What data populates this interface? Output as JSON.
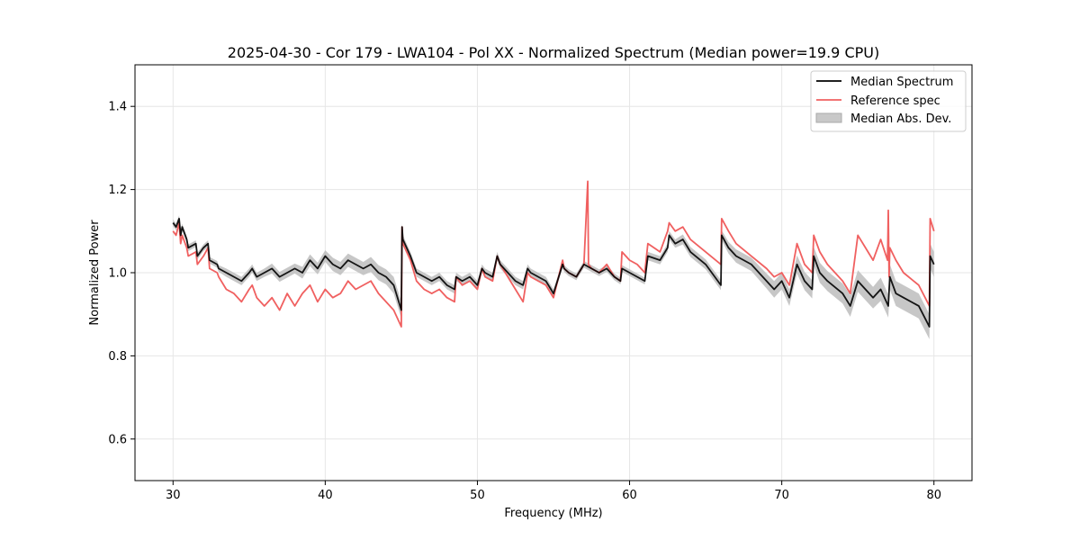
{
  "chart_data": {
    "type": "line",
    "title": "2025-04-30 - Cor 179 - LWA104 - Pol XX - Normalized Spectrum (Median power=19.9 CPU)",
    "xlabel": "Frequency (MHz)",
    "ylabel": "Normalized Power",
    "xlim": [
      27.5,
      82.5
    ],
    "ylim": [
      0.5,
      1.5
    ],
    "xticks": [
      30,
      40,
      50,
      60,
      70,
      80
    ],
    "yticks": [
      0.6,
      0.8,
      1.0,
      1.2,
      1.4
    ],
    "grid": true,
    "legend": {
      "position": "top-right",
      "entries": [
        "Median Spectrum",
        "Reference spec",
        "Median Abs. Dev."
      ]
    },
    "series": [
      {
        "name": "Median Spectrum",
        "color": "#000000",
        "x": [
          30.0,
          30.2,
          30.4,
          30.5,
          30.6,
          30.9,
          31.0,
          31.5,
          31.6,
          32.0,
          32.3,
          32.4,
          32.9,
          33.0,
          33.5,
          34.0,
          34.5,
          35.0,
          35.2,
          35.5,
          36.0,
          36.5,
          37.0,
          37.5,
          38.0,
          38.5,
          39.0,
          39.5,
          40.0,
          40.5,
          41.0,
          41.5,
          42.0,
          42.5,
          43.0,
          43.5,
          44.0,
          44.5,
          45.0,
          45.05,
          45.1,
          45.6,
          46.0,
          46.5,
          47.0,
          47.5,
          48.0,
          48.5,
          48.6,
          49.0,
          49.5,
          50.0,
          50.3,
          50.5,
          51.0,
          51.3,
          51.5,
          52.0,
          52.5,
          53.0,
          53.3,
          53.5,
          54.0,
          54.5,
          55.0,
          55.6,
          55.7,
          56.0,
          56.5,
          57.0,
          57.5,
          58.0,
          58.5,
          59.0,
          59.4,
          59.5,
          60.0,
          60.5,
          61.0,
          61.2,
          62.0,
          62.5,
          62.6,
          63.0,
          63.5,
          64.0,
          65.0,
          66.0,
          66.05,
          66.5,
          67.0,
          68.0,
          69.0,
          69.5,
          70.0,
          70.5,
          71.0,
          71.5,
          72.0,
          72.1,
          72.5,
          73.0,
          74.0,
          74.5,
          75.0,
          75.5,
          76.0,
          76.5,
          77.0,
          77.1,
          77.5,
          78.0,
          79.0,
          79.7,
          79.75,
          80.0
        ],
        "y": [
          1.12,
          1.11,
          1.13,
          1.09,
          1.11,
          1.08,
          1.06,
          1.07,
          1.04,
          1.06,
          1.07,
          1.03,
          1.02,
          1.01,
          1.0,
          0.99,
          0.98,
          1.0,
          1.01,
          0.99,
          1.0,
          1.01,
          0.99,
          1.0,
          1.01,
          1.0,
          1.03,
          1.01,
          1.04,
          1.02,
          1.01,
          1.03,
          1.02,
          1.01,
          1.02,
          1.0,
          0.99,
          0.97,
          0.91,
          1.11,
          1.08,
          1.04,
          1.0,
          0.99,
          0.98,
          0.99,
          0.97,
          0.96,
          0.99,
          0.98,
          0.99,
          0.97,
          1.01,
          1.0,
          0.99,
          1.04,
          1.02,
          1.0,
          0.98,
          0.97,
          1.01,
          1.0,
          0.99,
          0.98,
          0.95,
          1.02,
          1.01,
          1.0,
          0.99,
          1.02,
          1.01,
          1.0,
          1.01,
          0.99,
          0.98,
          1.01,
          1.0,
          0.99,
          0.98,
          1.04,
          1.03,
          1.06,
          1.09,
          1.07,
          1.08,
          1.05,
          1.02,
          0.97,
          1.09,
          1.06,
          1.04,
          1.02,
          0.98,
          0.96,
          0.98,
          0.94,
          1.02,
          0.98,
          0.96,
          1.04,
          1.0,
          0.98,
          0.95,
          0.92,
          0.98,
          0.96,
          0.94,
          0.96,
          0.92,
          0.99,
          0.95,
          0.94,
          0.92,
          0.87,
          1.04,
          1.02
        ]
      },
      {
        "name": "Reference spec",
        "color": "#f06060",
        "x": [
          30.0,
          30.2,
          30.4,
          30.5,
          30.6,
          30.9,
          31.0,
          31.5,
          31.6,
          32.0,
          32.3,
          32.4,
          32.9,
          33.0,
          33.5,
          34.0,
          34.5,
          35.0,
          35.2,
          35.5,
          36.0,
          36.5,
          37.0,
          37.5,
          38.0,
          38.5,
          39.0,
          39.5,
          40.0,
          40.5,
          41.0,
          41.5,
          42.0,
          42.5,
          43.0,
          43.5,
          44.0,
          44.5,
          45.0,
          45.05,
          45.1,
          45.6,
          46.0,
          46.5,
          47.0,
          47.5,
          48.0,
          48.5,
          48.6,
          49.0,
          49.5,
          50.0,
          50.3,
          50.5,
          51.0,
          51.3,
          51.5,
          52.0,
          52.5,
          53.0,
          53.3,
          53.5,
          54.0,
          54.5,
          55.0,
          55.6,
          55.7,
          56.0,
          56.5,
          57.0,
          57.25,
          57.3,
          57.5,
          58.0,
          58.5,
          59.0,
          59.4,
          59.5,
          60.0,
          60.5,
          61.0,
          61.2,
          62.0,
          62.5,
          62.6,
          63.0,
          63.5,
          64.0,
          65.0,
          66.0,
          66.05,
          66.5,
          67.0,
          68.0,
          69.0,
          69.5,
          70.0,
          70.5,
          71.0,
          71.5,
          72.0,
          72.1,
          72.5,
          73.0,
          74.0,
          74.5,
          75.0,
          75.5,
          76.0,
          76.5,
          76.95,
          77.0,
          77.05,
          77.1,
          77.5,
          78.0,
          79.0,
          79.7,
          79.75,
          80.0
        ],
        "y": [
          1.1,
          1.09,
          1.12,
          1.07,
          1.09,
          1.06,
          1.04,
          1.05,
          1.02,
          1.04,
          1.06,
          1.01,
          1.0,
          0.99,
          0.96,
          0.95,
          0.93,
          0.96,
          0.97,
          0.94,
          0.92,
          0.94,
          0.91,
          0.95,
          0.92,
          0.95,
          0.97,
          0.93,
          0.96,
          0.94,
          0.95,
          0.98,
          0.96,
          0.97,
          0.98,
          0.95,
          0.93,
          0.91,
          0.87,
          1.11,
          1.07,
          1.03,
          0.98,
          0.96,
          0.95,
          0.96,
          0.94,
          0.93,
          0.99,
          0.97,
          0.98,
          0.96,
          1.01,
          0.99,
          0.98,
          1.04,
          1.02,
          0.99,
          0.96,
          0.93,
          1.0,
          0.99,
          0.98,
          0.97,
          0.94,
          1.03,
          1.01,
          1.0,
          0.99,
          1.02,
          1.22,
          1.02,
          1.01,
          1.0,
          1.02,
          0.99,
          0.98,
          1.05,
          1.03,
          1.02,
          1.0,
          1.07,
          1.05,
          1.1,
          1.12,
          1.1,
          1.11,
          1.08,
          1.05,
          1.02,
          1.13,
          1.1,
          1.07,
          1.04,
          1.01,
          0.99,
          1.0,
          0.97,
          1.07,
          1.02,
          1.0,
          1.09,
          1.05,
          1.02,
          0.98,
          0.95,
          1.09,
          1.06,
          1.03,
          1.08,
          1.03,
          1.15,
          0.99,
          1.06,
          1.03,
          1.0,
          0.97,
          0.92,
          1.13,
          1.1
        ]
      },
      {
        "name": "Median Abs. Dev.",
        "color": "#aaaaaa",
        "type": "band",
        "center_series": "Median Spectrum",
        "halfwidth": [
          0.008,
          0.008,
          0.008,
          0.008,
          0.008,
          0.008,
          0.008,
          0.008,
          0.008,
          0.008,
          0.008,
          0.008,
          0.008,
          0.008,
          0.01,
          0.01,
          0.01,
          0.01,
          0.01,
          0.01,
          0.01,
          0.012,
          0.012,
          0.012,
          0.012,
          0.014,
          0.014,
          0.014,
          0.014,
          0.016,
          0.016,
          0.016,
          0.016,
          0.016,
          0.018,
          0.018,
          0.018,
          0.02,
          0.02,
          0.01,
          0.01,
          0.01,
          0.01,
          0.01,
          0.01,
          0.01,
          0.01,
          0.01,
          0.01,
          0.01,
          0.01,
          0.01,
          0.01,
          0.01,
          0.01,
          0.01,
          0.01,
          0.01,
          0.01,
          0.01,
          0.01,
          0.01,
          0.01,
          0.01,
          0.01,
          0.008,
          0.008,
          0.008,
          0.008,
          0.008,
          0.008,
          0.008,
          0.008,
          0.008,
          0.008,
          0.008,
          0.008,
          0.008,
          0.008,
          0.01,
          0.01,
          0.01,
          0.01,
          0.01,
          0.012,
          0.012,
          0.012,
          0.012,
          0.012,
          0.014,
          0.016,
          0.016,
          0.018,
          0.02,
          0.02,
          0.02,
          0.022,
          0.022,
          0.022,
          0.022,
          0.024,
          0.024,
          0.024,
          0.026,
          0.026,
          0.026,
          0.026,
          0.028,
          0.028,
          0.03,
          0.03,
          0.03,
          0.03,
          0.03,
          0.03,
          0.03
        ]
      }
    ]
  }
}
